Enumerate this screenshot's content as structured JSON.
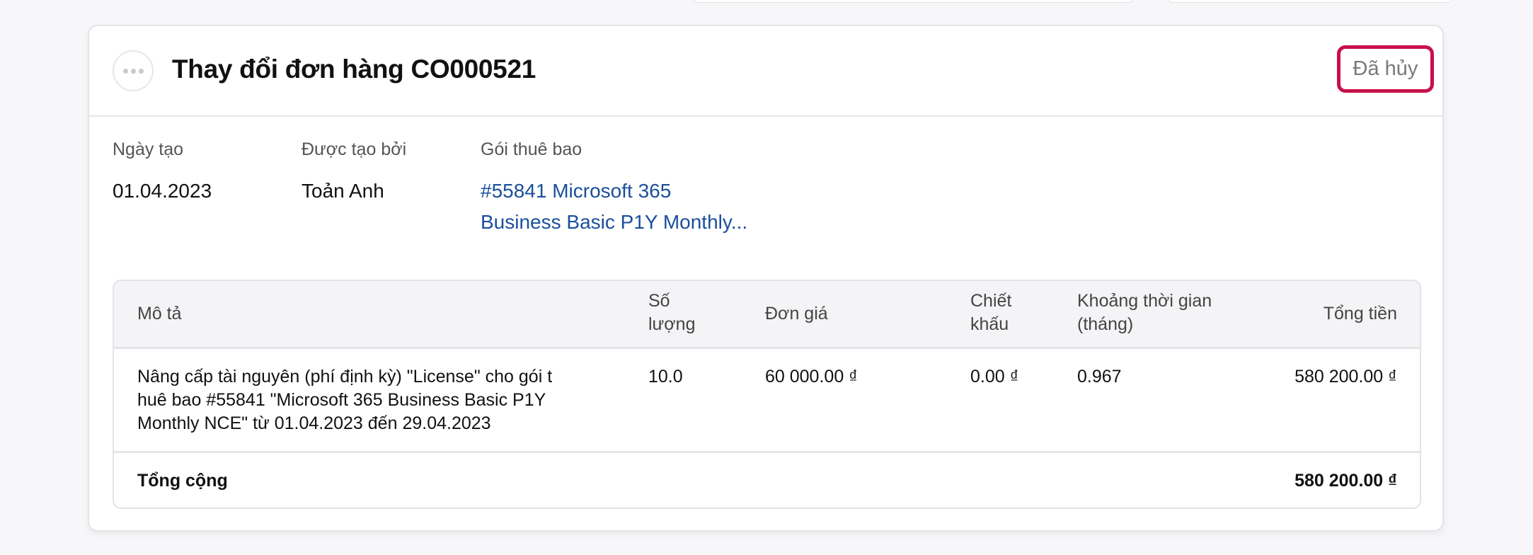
{
  "card": {
    "title": "Thay đổi đơn hàng CO000521",
    "status": "Đã hủy",
    "status_color": "#c8104a",
    "menu_icon": "more-horizontal-icon",
    "meta": [
      {
        "label": "Ngày tạo",
        "value": "01.04.2023"
      },
      {
        "label": "Được tạo bởi",
        "value": "Toản Anh"
      },
      {
        "label": "Gói thuê bao",
        "value_line1": "#55841 Microsoft 365",
        "value_line2": "Business Basic P1Y Monthly..."
      }
    ],
    "link_color": "#1a4f9c"
  },
  "table": {
    "headers": {
      "description": "Mô tả",
      "quantity_1": "Số",
      "quantity_2": "lượng",
      "unit_price": "Đơn giá",
      "discount_1": "Chiết",
      "discount_2": "khấu",
      "period_1": "Khoảng thời gian",
      "period_2": "(tháng)",
      "total": "Tổng tiền"
    },
    "rows": [
      {
        "description_1": "Nâng cấp tài nguyên (phí định kỳ) \"License\" cho gói t",
        "description_2": "huê bao #55841 \"Microsoft 365 Business Basic P1Y",
        "description_3": "Monthly NCE\" từ 01.04.2023 đến 29.04.2023",
        "quantity": "10.0",
        "unit_price": "60 000.00 ₫",
        "discount": "0.00 ₫",
        "period": "0.967",
        "total": "580 200.00 ₫"
      }
    ],
    "footer": {
      "label": "Tổng cộng",
      "total": "580 200.00 ₫"
    }
  }
}
